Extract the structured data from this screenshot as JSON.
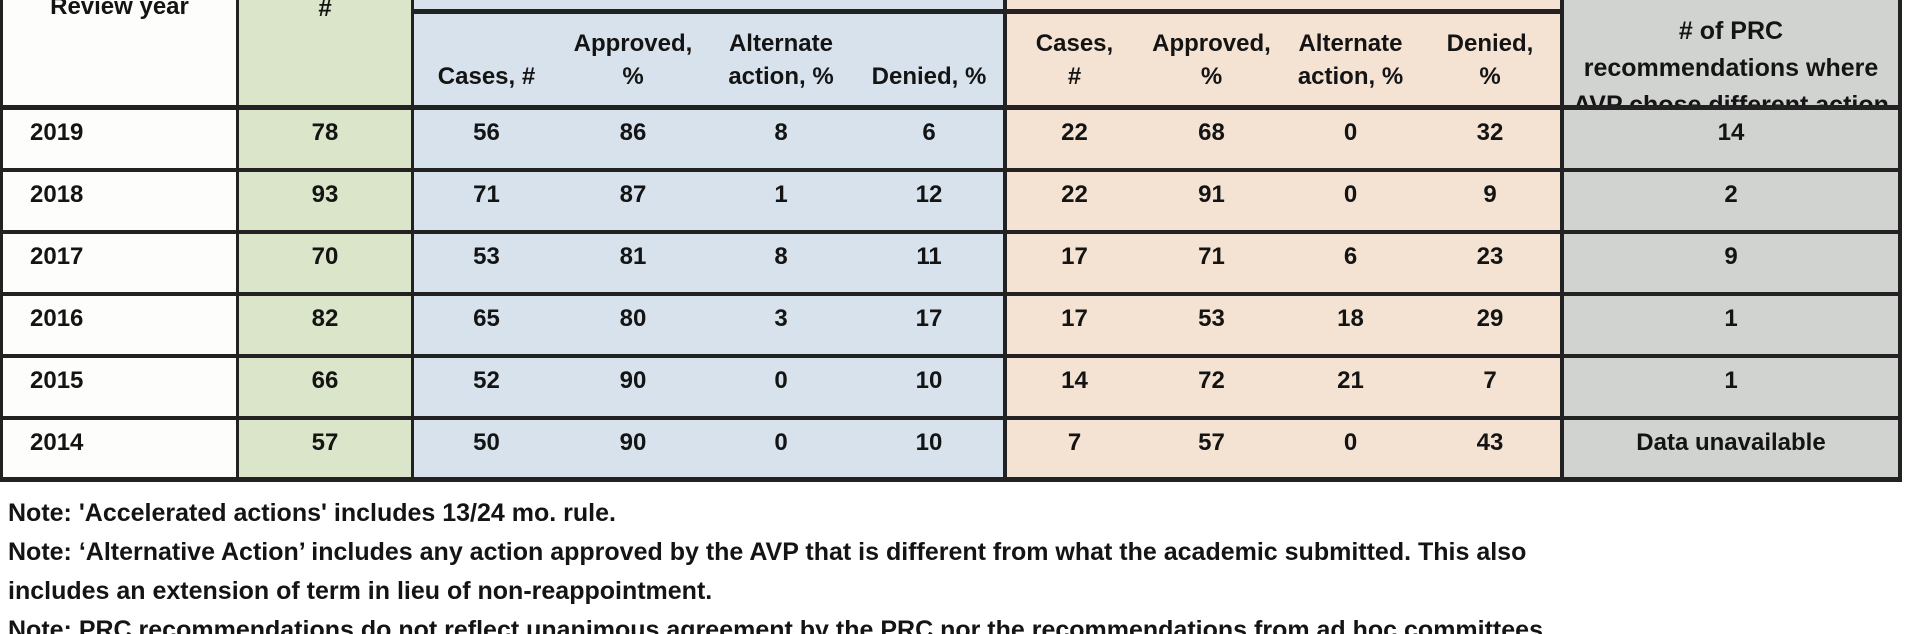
{
  "colors": {
    "green": "#dae5c9",
    "blue": "#d8e2ec",
    "orange": "#f4e3d3",
    "gray": "#d1d3d0",
    "border": "#222222",
    "text": "#141414",
    "white-cell": "#fdfdfb"
  },
  "header": {
    "review_year": "Review year",
    "total": "#",
    "regular": [
      "Cases, #",
      "Approved,\n%",
      "Alternate\naction, %",
      "Denied, %"
    ],
    "accelerated": [
      "Cases,\n#",
      "Approved,\n%",
      "Alternate\naction, %",
      "Denied,\n%"
    ],
    "prc": "# of PRC\nrecommendations where\nAVP chose different action"
  },
  "rows": [
    {
      "year": "2019",
      "total": "78",
      "regular": [
        "56",
        "86",
        "8",
        "6"
      ],
      "accelerated": [
        "22",
        "68",
        "0",
        "32"
      ],
      "prc": "14"
    },
    {
      "year": "2018",
      "total": "93",
      "regular": [
        "71",
        "87",
        "1",
        "12"
      ],
      "accelerated": [
        "22",
        "91",
        "0",
        "9"
      ],
      "prc": "2"
    },
    {
      "year": "2017",
      "total": "70",
      "regular": [
        "53",
        "81",
        "8",
        "11"
      ],
      "accelerated": [
        "17",
        "71",
        "6",
        "23"
      ],
      "prc": "9"
    },
    {
      "year": "2016",
      "total": "82",
      "regular": [
        "65",
        "80",
        "3",
        "17"
      ],
      "accelerated": [
        "17",
        "53",
        "18",
        "29"
      ],
      "prc": "1"
    },
    {
      "year": "2015",
      "total": "66",
      "regular": [
        "52",
        "90",
        "0",
        "10"
      ],
      "accelerated": [
        "14",
        "72",
        "21",
        "7"
      ],
      "prc": "1"
    },
    {
      "year": "2014",
      "total": "57",
      "regular": [
        "50",
        "90",
        "0",
        "10"
      ],
      "accelerated": [
        "7",
        "57",
        "0",
        "43"
      ],
      "prc": "Data unavailable"
    }
  ],
  "notes": {
    "lines": [
      "Note: 'Accelerated actions' includes 13/24 mo. rule.",
      "Note: ‘Alternative Action’ includes any action approved by the AVP that is different from what the academic submitted. This also",
      "includes an extension of term in lieu of non-reappointment.",
      "Note: PRC recommendations do not reflect unanimous agreement by the PRC nor the recommendations from ad hoc committees."
    ]
  }
}
